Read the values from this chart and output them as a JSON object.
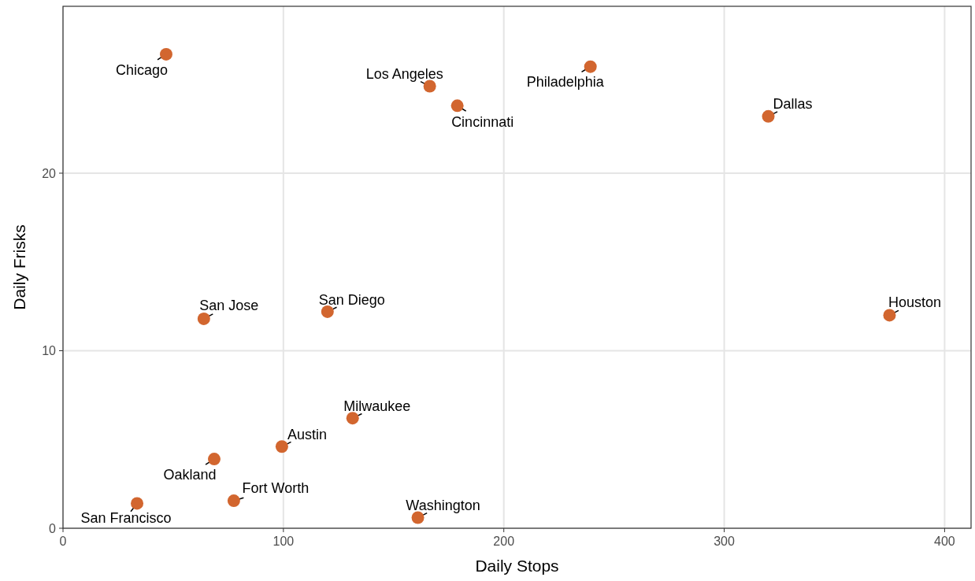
{
  "chart_data": {
    "type": "scatter",
    "xlabel": "Daily Stops",
    "ylabel": "Daily Frisks",
    "color": "#d2662f",
    "marker": "circle",
    "grid": true,
    "x": [
      46.8,
      166.4,
      178.9,
      239.3,
      320,
      63.9,
      120,
      375,
      131.4,
      99.3,
      68.6,
      77.5,
      33.6,
      161
    ],
    "values": [
      26.7,
      24.9,
      23.8,
      26.0,
      23.2,
      11.8,
      12.2,
      12.0,
      6.2,
      4.6,
      3.9,
      1.55,
      1.4,
      0.6
    ],
    "xlim": [
      0,
      412
    ],
    "xticks": [
      0,
      100,
      200,
      300,
      400
    ],
    "ylim": [
      0,
      29.4
    ],
    "yticks": [
      0,
      10,
      20
    ],
    "annotations": [
      {
        "text": "Chicago",
        "x": 46.8,
        "y": 26.7
      },
      {
        "text": "Los Angeles",
        "x": 166.4,
        "y": 24.9
      },
      {
        "text": "Cincinnati",
        "x": 178.9,
        "y": 23.8
      },
      {
        "text": "Philadelphia",
        "x": 239.3,
        "y": 26.0
      },
      {
        "text": "Dallas",
        "x": 320,
        "y": 23.2
      },
      {
        "text": "San Jose",
        "x": 63.9,
        "y": 11.8
      },
      {
        "text": "San Diego",
        "x": 120,
        "y": 12.2
      },
      {
        "text": "Houston",
        "x": 375,
        "y": 12.0
      },
      {
        "text": "Milwaukee",
        "x": 131.4,
        "y": 6.2
      },
      {
        "text": "Austin",
        "x": 99.3,
        "y": 4.6
      },
      {
        "text": "Oakland",
        "x": 68.6,
        "y": 3.9
      },
      {
        "text": "Fort Worth",
        "x": 77.5,
        "y": 1.55
      },
      {
        "text": "San Francisco",
        "x": 33.6,
        "y": 1.4
      },
      {
        "text": "Washington",
        "x": 161,
        "y": 0.6
      }
    ]
  }
}
